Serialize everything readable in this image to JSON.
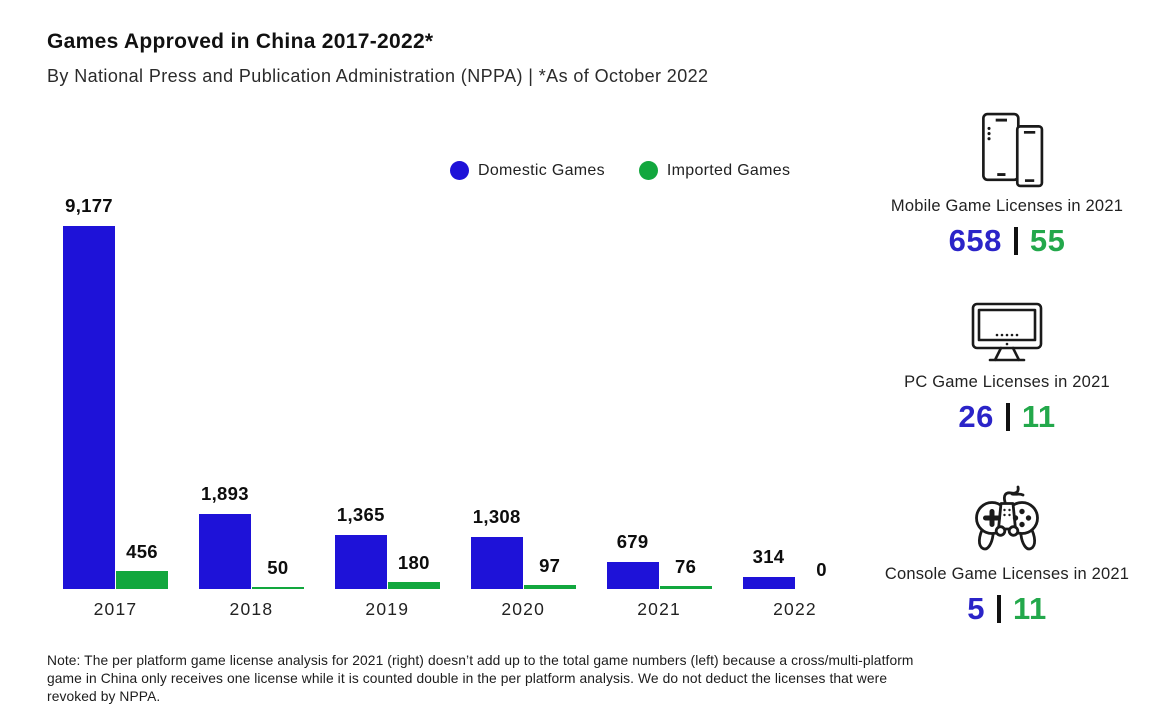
{
  "title": "Games Approved in China 2017-2022*",
  "subtitle": "By National Press and Publication Administration (NPPA) | *As of October 2022",
  "colors": {
    "bar_domestic": "#1E12D8",
    "bar_imported": "#12A73E",
    "number_domestic": "#2B24C8",
    "number_imported": "#23A84B",
    "text": "#161616"
  },
  "legend": [
    {
      "label": "Domestic Games",
      "color": "#1E12D8"
    },
    {
      "label": "Imported Games",
      "color": "#12A73E"
    }
  ],
  "chart_data": {
    "type": "bar",
    "title": "Games Approved in China 2017-2022*",
    "categories": [
      "2017",
      "2018",
      "2019",
      "2020",
      "2021",
      "2022"
    ],
    "series": [
      {
        "name": "Domestic Games",
        "color": "#1E12D8",
        "values": [
          9177,
          1893,
          1365,
          1308,
          679,
          314
        ]
      },
      {
        "name": "Imported Games",
        "color": "#12A73E",
        "values": [
          456,
          50,
          180,
          97,
          76,
          0
        ]
      }
    ],
    "value_labels": [
      [
        "9,177",
        "1,893",
        "1,365",
        "1,308",
        "679",
        "314"
      ],
      [
        "456",
        "50",
        "180",
        "97",
        "76",
        "0"
      ]
    ],
    "xlabel": "",
    "ylabel": "",
    "ylim": [
      0,
      9177
    ],
    "grid": false,
    "legend_position": "top-center"
  },
  "stats": [
    {
      "icon": "mobile-phones-icon",
      "label": "Mobile Game Licenses in 2021",
      "domestic": "658",
      "imported": "55"
    },
    {
      "icon": "pc-monitor-icon",
      "label": "PC Game Licenses in 2021",
      "domestic": "26",
      "imported": "11"
    },
    {
      "icon": "gamepad-icon",
      "label": "Console Game Licenses in 2021",
      "domestic": "5",
      "imported": "11"
    }
  ],
  "note": "Note: The per platform game license analysis for 2021 (right) doesn’t add up to the total game numbers (left) because a cross/multi-platform game in China only receives one license while it is counted double in the per platform analysis. We do not deduct the licenses that were revoked by NPPA."
}
